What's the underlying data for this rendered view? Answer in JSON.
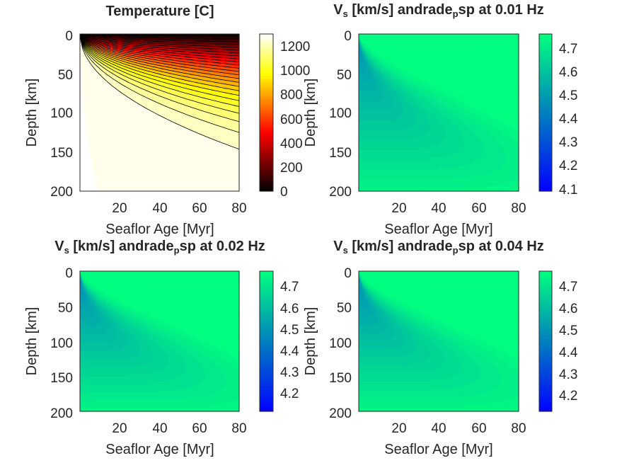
{
  "chart_data": [
    {
      "type": "heatmap",
      "title": "Temperature [C]",
      "xlabel": "Seaflor Age [Myr]",
      "ylabel": "Depth [km]",
      "xlim": [
        0,
        80
      ],
      "ylim": [
        0,
        200
      ],
      "x_ticks": [
        "20",
        "40",
        "60",
        "80"
      ],
      "y_ticks": [
        "0",
        "50",
        "100",
        "150",
        "200"
      ],
      "colormap": "hot",
      "contour_lines": true,
      "clim": [
        0,
        1300
      ],
      "colorbar_ticks": [
        "0",
        "200",
        "400",
        "600",
        "800",
        "1000",
        "1200"
      ]
    },
    {
      "type": "heatmap",
      "title_main": "V",
      "title_sub": "s",
      "title_mid": " [km/s] andrade",
      "title_sub2": "p",
      "title_end": "sp at 0.01 Hz",
      "xlabel": "Seaflor Age [Myr]",
      "ylabel": "Depth [km]",
      "xlim": [
        0,
        80
      ],
      "ylim": [
        0,
        200
      ],
      "x_ticks": [
        "20",
        "40",
        "60",
        "80"
      ],
      "y_ticks": [
        "0",
        "50",
        "100",
        "150",
        "200"
      ],
      "colormap": "winter",
      "clim": [
        4.08,
        4.77
      ],
      "colorbar_ticks": [
        "4.1",
        "4.2",
        "4.3",
        "4.4",
        "4.5",
        "4.6",
        "4.7"
      ]
    },
    {
      "type": "heatmap",
      "title_main": "V",
      "title_sub": "s",
      "title_mid": " [km/s] andrade",
      "title_sub2": "p",
      "title_end": "sp at 0.02 Hz",
      "xlabel": "Seaflor Age [Myr]",
      "ylabel": "Depth [km]",
      "xlim": [
        0,
        80
      ],
      "ylim": [
        0,
        200
      ],
      "x_ticks": [
        "20",
        "40",
        "60",
        "80"
      ],
      "y_ticks": [
        "0",
        "50",
        "100",
        "150",
        "200"
      ],
      "colormap": "winter",
      "clim": [
        4.12,
        4.77
      ],
      "colorbar_ticks": [
        "4.2",
        "4.3",
        "4.4",
        "4.5",
        "4.6",
        "4.7"
      ]
    },
    {
      "type": "heatmap",
      "title_main": "V",
      "title_sub": "s",
      "title_mid": " [km/s] andrade",
      "title_sub2": "p",
      "title_end": "sp at 0.04 Hz",
      "xlabel": "Seaflor Age [Myr]",
      "ylabel": "Depth [km]",
      "xlim": [
        0,
        80
      ],
      "ylim": [
        0,
        200
      ],
      "x_ticks": [
        "20",
        "40",
        "60",
        "80"
      ],
      "y_ticks": [
        "0",
        "50",
        "100",
        "150",
        "200"
      ],
      "colormap": "winter",
      "clim": [
        4.12,
        4.77
      ],
      "colorbar_ticks": [
        "4.2",
        "4.3",
        "4.4",
        "4.5",
        "4.6",
        "4.7"
      ]
    }
  ]
}
